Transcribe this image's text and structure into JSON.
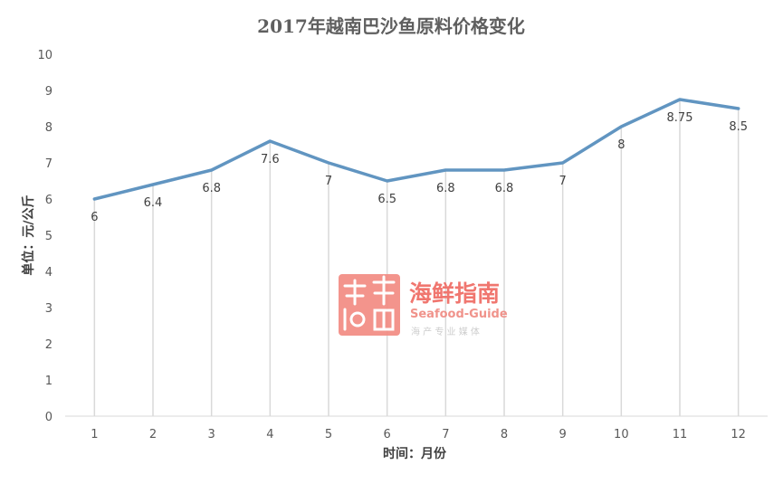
{
  "chart_data": {
    "type": "line",
    "title": "2017年越南巴沙鱼原料价格变化",
    "xlabel": "时间：月份",
    "ylabel": "单位：元/公斤",
    "categories": [
      "1",
      "2",
      "3",
      "4",
      "5",
      "6",
      "7",
      "8",
      "9",
      "10",
      "11",
      "12"
    ],
    "series": [
      {
        "values": [
          6,
          6.4,
          6.8,
          7.6,
          7,
          6.5,
          6.8,
          6.8,
          7,
          8,
          8.75,
          8.5
        ],
        "labels": [
          "6",
          "6.4",
          "6.8",
          "7.6",
          "7",
          "6.5",
          "6.8",
          "6.8",
          "7",
          "8",
          "8.75",
          "8.5"
        ]
      }
    ],
    "ylim": [
      0,
      10
    ],
    "yticks": [
      "0",
      "1",
      "2",
      "3",
      "4",
      "5",
      "6",
      "7",
      "8",
      "9",
      "10"
    ],
    "grid": false,
    "drop_lines": true,
    "legend": "none",
    "colors": {
      "line": "#6195c1",
      "drop_line": "#d9d9d9",
      "axis": "#d9d9d9"
    }
  },
  "watermark": {
    "name_cn": "海鲜指南",
    "name_en": "Seafood-Guide",
    "tagline": "海 产 专 业 媒 体",
    "seal_text": "海鲜指南",
    "colors": {
      "primary": "#ef6b63",
      "seal_bg": "#f28b83"
    }
  }
}
